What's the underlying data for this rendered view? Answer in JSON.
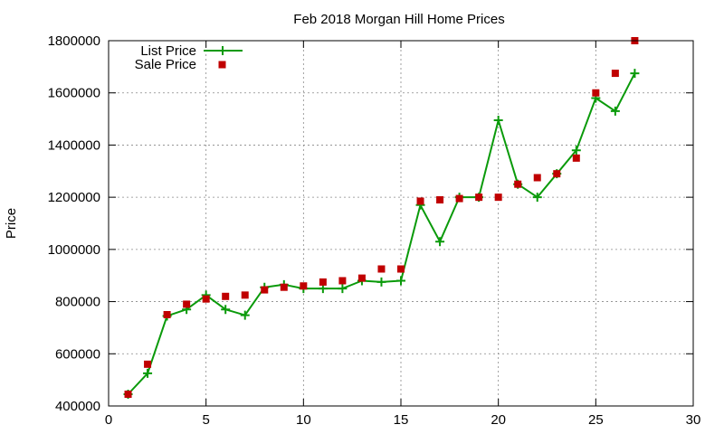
{
  "chart_data": {
    "type": "line",
    "title": "Feb 2018 Morgan Hill Home Prices",
    "xlabel": "",
    "ylabel": "Price",
    "xlim": [
      0,
      30
    ],
    "ylim": [
      400000,
      1800000
    ],
    "xticks": [
      0,
      5,
      10,
      15,
      20,
      25,
      30
    ],
    "yticks": [
      400000,
      600000,
      800000,
      1000000,
      1200000,
      1400000,
      1600000,
      1800000
    ],
    "grid": true,
    "legend_position": "top-left",
    "series": [
      {
        "name": "List Price",
        "style": "line-with-plus-markers",
        "color": "#0a9a0a",
        "x": [
          1,
          2,
          3,
          4,
          5,
          6,
          7,
          8,
          9,
          10,
          11,
          12,
          13,
          14,
          15,
          16,
          17,
          18,
          19,
          20,
          21,
          22,
          23,
          24,
          25,
          26,
          27
        ],
        "values": [
          445000,
          525000,
          745000,
          770000,
          825000,
          770000,
          748000,
          855000,
          865000,
          850000,
          850000,
          850000,
          880000,
          875000,
          880000,
          1170000,
          1030000,
          1200000,
          1200000,
          1495000,
          1250000,
          1200000,
          1290000,
          1380000,
          1580000,
          1530000,
          1675000
        ]
      },
      {
        "name": "Sale Price",
        "style": "square-markers",
        "color": "#c00000",
        "x": [
          1,
          2,
          3,
          4,
          5,
          6,
          7,
          8,
          9,
          10,
          11,
          12,
          13,
          14,
          15,
          16,
          17,
          18,
          19,
          20,
          21,
          22,
          23,
          24,
          25,
          26,
          27
        ],
        "values": [
          445000,
          560000,
          750000,
          790000,
          810000,
          820000,
          825000,
          845000,
          855000,
          860000,
          875000,
          880000,
          890000,
          925000,
          925000,
          1185000,
          1190000,
          1195000,
          1200000,
          1200000,
          1250000,
          1275000,
          1290000,
          1350000,
          1600000,
          1675000,
          1800000
        ]
      }
    ]
  }
}
